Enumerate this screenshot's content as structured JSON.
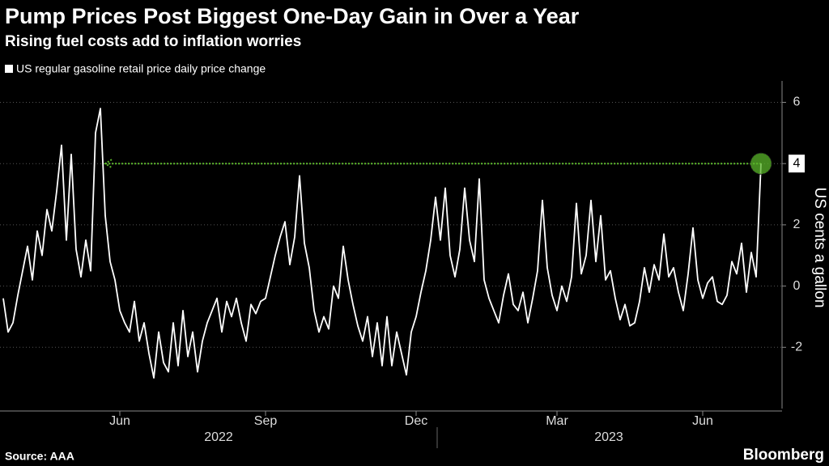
{
  "chart_data": {
    "type": "line",
    "title": "Pump Prices Post Biggest One-Day Gain in Over a Year",
    "subtitle": "Rising fuel costs add to inflation worries",
    "y_label": "US cents a gallon",
    "source": "Source: AAA",
    "brand": "Bloomberg",
    "x_groups": [
      "2022",
      "2023"
    ],
    "categories": [
      null,
      null,
      null,
      null,
      null,
      null,
      null,
      null,
      null,
      null,
      null,
      null,
      null,
      null,
      null,
      null,
      null,
      null,
      null,
      null,
      null,
      null,
      null,
      null,
      "Jun",
      null,
      null,
      null,
      null,
      null,
      null,
      null,
      null,
      null,
      null,
      null,
      null,
      null,
      null,
      null,
      null,
      null,
      null,
      null,
      null,
      null,
      null,
      null,
      null,
      null,
      null,
      null,
      null,
      null,
      "Sep",
      null,
      null,
      null,
      null,
      null,
      null,
      null,
      null,
      null,
      null,
      null,
      null,
      null,
      null,
      null,
      null,
      null,
      null,
      null,
      null,
      null,
      null,
      null,
      null,
      null,
      null,
      null,
      null,
      null,
      null,
      "Dec",
      null,
      null,
      null,
      null,
      null,
      null,
      null,
      null,
      null,
      null,
      null,
      null,
      null,
      null,
      null,
      null,
      null,
      null,
      null,
      null,
      null,
      null,
      null,
      null,
      null,
      null,
      null,
      null,
      "Mar",
      null,
      null,
      null,
      null,
      null,
      null,
      null,
      null,
      null,
      null,
      null,
      null,
      null,
      null,
      null,
      null,
      null,
      null,
      null,
      null,
      null,
      null,
      null,
      null,
      null,
      null,
      null,
      null,
      null,
      "Jun",
      null,
      null,
      null,
      null,
      null,
      null,
      null,
      null,
      null,
      null,
      null,
      null
    ],
    "series": [
      {
        "name": "US regular gasoline retail price daily price change",
        "color": "#ffffff",
        "values": [
          -0.4,
          -1.5,
          -1.2,
          -0.3,
          0.5,
          1.3,
          0.2,
          1.8,
          1.0,
          2.5,
          1.8,
          3.1,
          4.6,
          1.5,
          4.3,
          1.2,
          0.3,
          1.5,
          0.5,
          5.0,
          5.8,
          2.3,
          0.8,
          0.2,
          -0.8,
          -1.2,
          -1.5,
          -0.5,
          -1.8,
          -1.2,
          -2.2,
          -3.0,
          -1.5,
          -2.5,
          -2.8,
          -1.2,
          -2.6,
          -0.8,
          -2.3,
          -1.5,
          -2.8,
          -1.8,
          -1.2,
          -0.8,
          -0.4,
          -1.5,
          -0.5,
          -1.0,
          -0.4,
          -1.2,
          -1.8,
          -0.6,
          -0.9,
          -0.5,
          -0.4,
          0.3,
          1.0,
          1.6,
          2.1,
          0.7,
          1.6,
          3.6,
          1.4,
          0.6,
          -0.8,
          -1.5,
          -1.0,
          -1.4,
          0.0,
          -0.4,
          1.3,
          0.2,
          -0.6,
          -1.3,
          -1.8,
          -1.0,
          -2.3,
          -1.2,
          -2.6,
          -1.0,
          -2.6,
          -1.5,
          -2.2,
          -2.9,
          -1.5,
          -1.0,
          -0.2,
          0.5,
          1.5,
          2.9,
          1.5,
          3.2,
          1.0,
          0.3,
          1.2,
          3.2,
          1.5,
          0.8,
          3.5,
          0.2,
          -0.4,
          -0.8,
          -1.2,
          -0.3,
          0.4,
          -0.6,
          -0.8,
          -0.2,
          -1.2,
          -0.4,
          0.5,
          2.8,
          0.6,
          -0.3,
          -0.8,
          0.0,
          -0.5,
          0.3,
          2.7,
          0.4,
          1.0,
          2.8,
          0.8,
          2.3,
          0.2,
          0.5,
          -0.4,
          -1.1,
          -0.6,
          -1.3,
          -1.2,
          -0.5,
          0.6,
          -0.2,
          0.7,
          0.2,
          1.7,
          0.3,
          0.6,
          -0.2,
          -0.8,
          0.4,
          1.9,
          0.2,
          -0.4,
          0.1,
          0.3,
          -0.5,
          -0.6,
          -0.3,
          0.8,
          0.4,
          1.4,
          -0.2,
          1.1,
          0.3,
          4
        ]
      }
    ],
    "ylim": [
      -4,
      6.7
    ],
    "yticks": [
      -2,
      0,
      2,
      4,
      6
    ],
    "grid": true,
    "highlight_color": "#5ab52a"
  }
}
